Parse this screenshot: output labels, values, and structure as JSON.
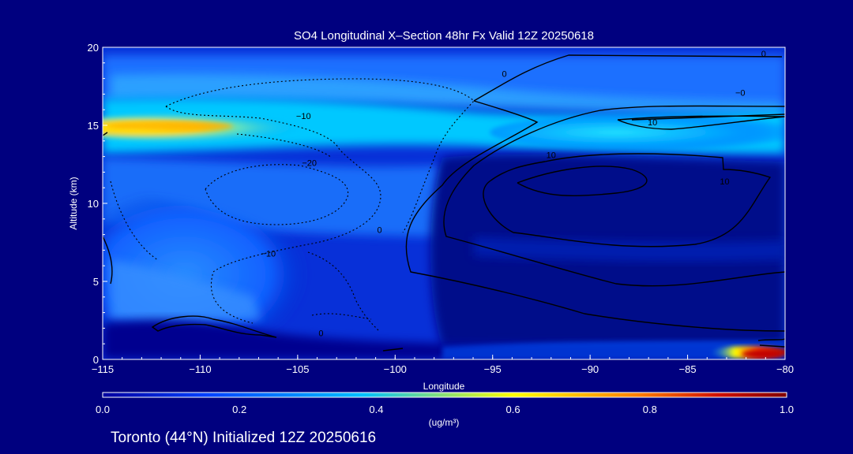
{
  "chart_data": {
    "type": "heatmap",
    "title": "SO4 Longitudinal X–Section 48hr  Fx Valid 12Z 20250618",
    "xlabel": "Longitude",
    "ylabel": "Altitude (km)",
    "xlim": [
      -115,
      -80
    ],
    "ylim": [
      0,
      20
    ],
    "x_ticks": [
      -115,
      -110,
      -105,
      -100,
      -95,
      -90,
      -85,
      -80
    ],
    "x_tick_labels": [
      "−115",
      "−110",
      "−105",
      "−100",
      "−95",
      "−90",
      "−85",
      "−80"
    ],
    "y_ticks": [
      0,
      5,
      10,
      15,
      20
    ],
    "y_tick_labels": [
      "0",
      "5",
      "10",
      "15",
      "20"
    ],
    "colorbar": {
      "min": 0.0,
      "max": 1.0,
      "tick_values": [
        0.0,
        0.2,
        0.4,
        0.6,
        0.8,
        1.0
      ],
      "tick_labels": [
        "0.0",
        "0.2",
        "0.4",
        "0.6",
        "0.8",
        "1.0"
      ],
      "units": "(ug/m³)",
      "colormap": [
        "#0000a0",
        "#0040ff",
        "#00c0ff",
        "#ffff00",
        "#ff8000",
        "#c00000",
        "#800000"
      ]
    },
    "concentration_features": [
      {
        "lon_min": -115,
        "lon_max": -95,
        "alt_min": 13.5,
        "alt_max": 16.2,
        "peak_lon": -110,
        "peak_alt": 15.0,
        "peak_value": 0.65
      },
      {
        "lon_min": -95,
        "lon_max": -80,
        "alt_min": 13.5,
        "alt_max": 16.0,
        "peak_lon": -88,
        "peak_alt": 14.8,
        "peak_value": 0.35
      },
      {
        "lon_min": -115,
        "lon_max": -80,
        "alt_min": 16.5,
        "alt_max": 19.5,
        "peak_lon": -105,
        "peak_alt": 17.5,
        "peak_value": 0.2
      },
      {
        "lon_min": -115,
        "lon_max": -104,
        "alt_min": 2.0,
        "alt_max": 13.0,
        "peak_lon": -112,
        "peak_alt": 6.0,
        "peak_value": 0.3
      },
      {
        "lon_min": -83,
        "lon_max": -80,
        "alt_min": 0.0,
        "alt_max": 0.7,
        "peak_lon": -80.5,
        "peak_alt": 0.3,
        "peak_value": 1.0
      }
    ],
    "contour_labels": [
      {
        "text": "0",
        "lon": -100.8,
        "alt": 8.1
      },
      {
        "text": "0",
        "lon": -103.8,
        "alt": 1.5
      },
      {
        "text": "0",
        "lon": -94.4,
        "alt": 18.1
      },
      {
        "text": "0",
        "lon": -81.1,
        "alt": 19.4
      },
      {
        "text": "−0",
        "lon": -82.3,
        "alt": 16.9
      },
      {
        "text": "−10",
        "lon": -104.7,
        "alt": 15.4
      },
      {
        "text": "−20",
        "lon": -104.4,
        "alt": 12.4
      },
      {
        "text": "−10",
        "lon": -106.5,
        "alt": 6.6
      },
      {
        "text": "10",
        "lon": -92.0,
        "alt": 12.9
      },
      {
        "text": "10",
        "lon": -86.8,
        "alt": 15.0
      },
      {
        "text": "10",
        "lon": -83.1,
        "alt": 11.2
      }
    ]
  },
  "footer": {
    "caption": "Toronto (44°N) Initialized 12Z 20250616"
  }
}
